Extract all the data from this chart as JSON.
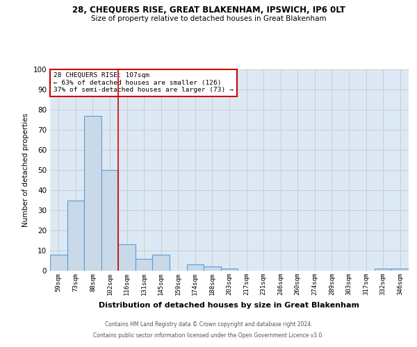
{
  "title1": "28, CHEQUERS RISE, GREAT BLAKENHAM, IPSWICH, IP6 0LT",
  "title2": "Size of property relative to detached houses in Great Blakenham",
  "xlabel": "Distribution of detached houses by size in Great Blakenham",
  "ylabel": "Number of detached properties",
  "categories": [
    "59sqm",
    "73sqm",
    "88sqm",
    "102sqm",
    "116sqm",
    "131sqm",
    "145sqm",
    "159sqm",
    "174sqm",
    "188sqm",
    "203sqm",
    "217sqm",
    "231sqm",
    "246sqm",
    "260sqm",
    "274sqm",
    "289sqm",
    "303sqm",
    "317sqm",
    "332sqm",
    "346sqm"
  ],
  "values": [
    8,
    35,
    77,
    50,
    13,
    6,
    8,
    0,
    3,
    2,
    1,
    0,
    0,
    0,
    0,
    0,
    0,
    0,
    0,
    1,
    1
  ],
  "bar_color": "#c9d9e8",
  "bar_edge_color": "#5b9bd5",
  "red_line_x": 3.5,
  "annotation_text": "28 CHEQUERS RISE: 107sqm\n← 63% of detached houses are smaller (126)\n37% of semi-detached houses are larger (73) →",
  "annotation_box_color": "#ffffff",
  "annotation_box_edge_color": "#cc0000",
  "red_line_color": "#cc0000",
  "ylim": [
    0,
    100
  ],
  "yticks": [
    0,
    10,
    20,
    30,
    40,
    50,
    60,
    70,
    80,
    90,
    100
  ],
  "grid_color": "#cccccc",
  "bg_color": "#dce9f5",
  "footer1": "Contains HM Land Registry data © Crown copyright and database right 2024.",
  "footer2": "Contains public sector information licensed under the Open Government Licence v3.0."
}
